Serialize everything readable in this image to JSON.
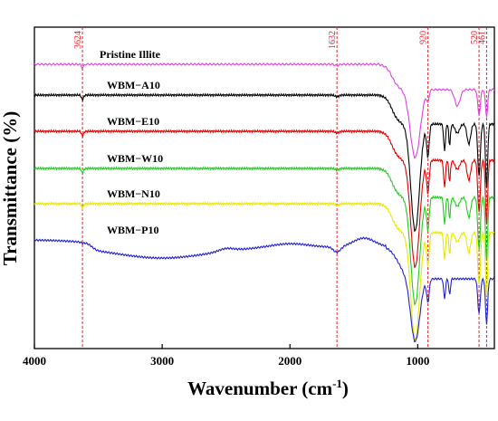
{
  "chart_data": {
    "type": "line",
    "xlabel": "Wavenumber (cm",
    "xlabel_sup": "-1",
    "xlabel_close": ")",
    "ylabel": "Transmittance (%)",
    "xlim": [
      4000,
      400
    ],
    "x_ticks": [
      {
        "value": 4000,
        "label": "4000"
      },
      {
        "value": 3000,
        "label": "3000"
      },
      {
        "value": 2000,
        "label": "2000"
      },
      {
        "value": 1000,
        "label": "1000"
      }
    ],
    "yticks_shown": false,
    "grid": false,
    "reference_lines": [
      {
        "value": 3624,
        "label": "3624"
      },
      {
        "value": 1632,
        "label": "1632"
      },
      {
        "value": 920,
        "label": "920"
      },
      {
        "value": 520,
        "label": "520"
      },
      {
        "value": 461,
        "label": "461"
      }
    ],
    "colors": {
      "reference_line": "#e8202a",
      "axis": "#000000"
    },
    "series": [
      {
        "name": "Pristine Illite",
        "color": "#e040e0",
        "baseline": 71,
        "profile": "weak"
      },
      {
        "name": "WBM−A10",
        "color": "#000000",
        "baseline": 105,
        "profile": "full"
      },
      {
        "name": "WBM−E10",
        "color": "#e00000",
        "baseline": 145,
        "profile": "full"
      },
      {
        "name": "WBM−W10",
        "color": "#22cc22",
        "baseline": 186,
        "profile": "full"
      },
      {
        "name": "WBM−N10",
        "color": "#e8e800",
        "baseline": 225,
        "profile": "full"
      },
      {
        "name": "WBM−P10",
        "color": "#2222cc",
        "baseline": 265,
        "profile": "wavy"
      }
    ]
  }
}
